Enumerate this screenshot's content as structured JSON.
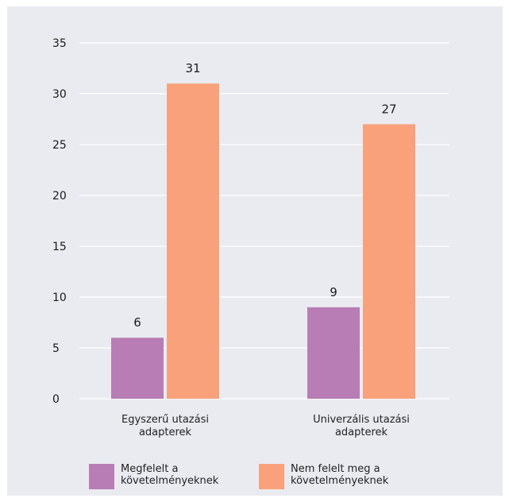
{
  "chart_data": {
    "type": "bar",
    "categories": [
      [
        "Egyszerű utazási",
        "adapterek"
      ],
      [
        "Univerzális utazási",
        "adapterek"
      ]
    ],
    "series": [
      {
        "name": [
          "Megfelelt a",
          "követelményeknek"
        ],
        "color": "#b87db4",
        "values": [
          6,
          9
        ]
      },
      {
        "name": [
          "Nem felelt meg a",
          "követelményeknek"
        ],
        "color": "#f8a17b",
        "values": [
          31,
          27
        ]
      }
    ],
    "ylim": [
      0,
      35
    ],
    "yticks": [
      0,
      5,
      10,
      15,
      20,
      25,
      30,
      35
    ],
    "grid": true,
    "legend_position": "bottom",
    "title": "",
    "xlabel": "",
    "ylabel": ""
  }
}
